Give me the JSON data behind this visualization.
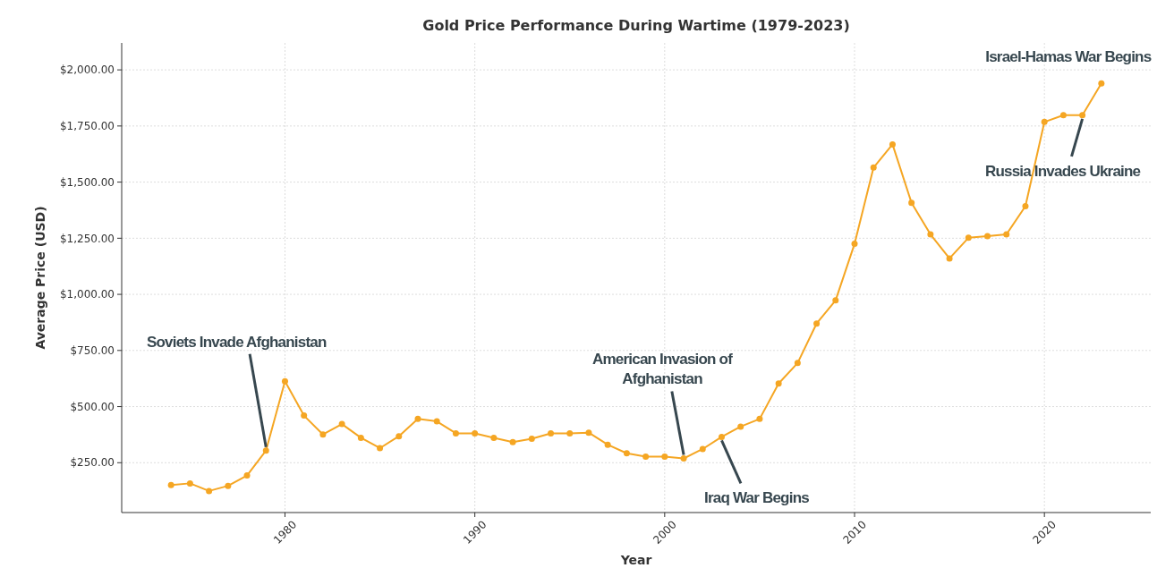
{
  "chart_data": {
    "type": "line",
    "title": "Gold Price Performance During Wartime (1979-2023)",
    "xlabel": "Year",
    "ylabel": "Average Price (USD)",
    "x": [
      1974,
      1975,
      1976,
      1977,
      1978,
      1979,
      1980,
      1981,
      1982,
      1983,
      1984,
      1985,
      1986,
      1987,
      1988,
      1989,
      1990,
      1991,
      1992,
      1993,
      1994,
      1995,
      1996,
      1997,
      1998,
      1999,
      2000,
      2001,
      2002,
      2003,
      2004,
      2005,
      2006,
      2007,
      2008,
      2009,
      2010,
      2011,
      2012,
      2013,
      2014,
      2015,
      2016,
      2017,
      2018,
      2019,
      2020,
      2021,
      2022,
      2023
    ],
    "series": [
      {
        "color": "#f5a623",
        "values": [
          151,
          158,
          124,
          147,
          193,
          304,
          613,
          460,
          376,
          422,
          361,
          315,
          368,
          445,
          434,
          381,
          381,
          361,
          342,
          357,
          381,
          381,
          384,
          330,
          292,
          277,
          277,
          269,
          311,
          365,
          411,
          445,
          603,
          694,
          870,
          973,
          1225,
          1565,
          1668,
          1408,
          1267,
          1160,
          1252,
          1259,
          1267,
          1393,
          1768,
          1798,
          1798,
          1940
        ]
      }
    ],
    "xlim": [
      1971.4,
      2025.6
    ],
    "xticks": [
      1980,
      1990,
      2000,
      2010,
      2020
    ],
    "ylim": [
      28,
      2120
    ],
    "yticks": [
      {
        "value": 250,
        "label": "$250.00"
      },
      {
        "value": 500,
        "label": "$500.00"
      },
      {
        "value": 750,
        "label": "$750.00"
      },
      {
        "value": 1000,
        "label": "$1,000.00"
      },
      {
        "value": 1250,
        "label": "$1,250.00"
      },
      {
        "value": 1500,
        "label": "$1,500.00"
      },
      {
        "value": 1750,
        "label": "$1,750.00"
      },
      {
        "value": 2000,
        "label": "$2,000.00"
      }
    ],
    "grid": true,
    "marker": "circle",
    "line_style": "solid",
    "annotations": [
      {
        "text": "Soviets Invade Afghanistan",
        "x": 1979,
        "y": 304
      },
      {
        "text": "American Invasion of Afghanistan",
        "x": 2001,
        "y": 269
      },
      {
        "text": "Iraq War Begins",
        "x": 2003,
        "y": 365
      },
      {
        "text": "Russia Invades Ukraine",
        "x": 2022,
        "y": 1798
      },
      {
        "text": "Israel-Hamas War Begins",
        "x": 2023,
        "y": 1940
      }
    ]
  }
}
